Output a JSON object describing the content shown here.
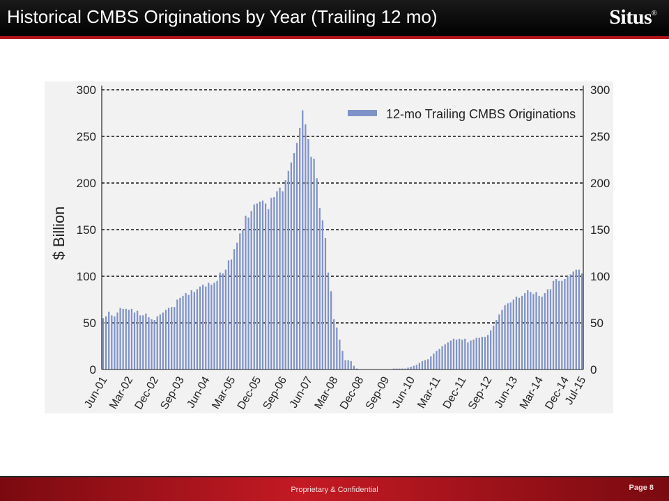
{
  "header": {
    "title": "Historical CMBS Originations by Year (Trailing 12 mo)",
    "logo_text": "Situs",
    "logo_mark": "®"
  },
  "footer": {
    "confidential": "Proprietary & Confidential",
    "page": "Page 8"
  },
  "colors": {
    "bar": "#7f92c9",
    "plot_background": "#f2f2f2",
    "header_rule": "#b3141c"
  },
  "chart_data": {
    "type": "bar",
    "title": "",
    "ylabel": "$ Billion",
    "ylabel_display": "$ Billion",
    "ylim": [
      0,
      300
    ],
    "yticks": [
      0,
      50,
      100,
      150,
      200,
      250,
      300
    ],
    "grid": "dashed horizontal at 50-unit intervals",
    "legend": {
      "position": "top-right",
      "entries": [
        "12-mo Trailing CMBS Originations"
      ]
    },
    "x_tick_labels": [
      "Jun-01",
      "Mar-02",
      "Dec-02",
      "Sep-03",
      "Jun-04",
      "Mar-05",
      "Dec-05",
      "Sep-06",
      "Jun-07",
      "Mar-08",
      "Dec-08",
      "Sep-09",
      "Jun-10",
      "Mar-11",
      "Dec-11",
      "Sep-12",
      "Jun-13",
      "Mar-14",
      "Dec-14",
      "Jul-15"
    ],
    "series": [
      {
        "name": "12-mo Trailing CMBS Originations",
        "start": "Jun-01",
        "end": "Jul-15",
        "frequency": "monthly",
        "values": [
          55,
          57,
          62,
          58,
          57,
          61,
          66,
          65,
          65,
          64,
          65,
          61,
          63,
          58,
          58,
          60,
          56,
          54,
          53,
          57,
          59,
          61,
          64,
          66,
          67,
          67,
          75,
          77,
          79,
          82,
          80,
          85,
          83,
          86,
          89,
          91,
          89,
          93,
          91,
          93,
          95,
          104,
          103,
          107,
          117,
          118,
          129,
          136,
          146,
          150,
          165,
          163,
          170,
          177,
          178,
          180,
          181,
          178,
          172,
          184,
          185,
          191,
          195,
          191,
          203,
          213,
          222,
          232,
          243,
          259,
          278,
          263,
          247,
          228,
          226,
          205,
          173,
          160,
          141,
          104,
          84,
          54,
          45,
          32,
          20,
          10,
          10,
          9,
          4,
          1,
          0,
          0,
          0,
          0,
          0,
          0,
          0,
          0,
          0,
          0,
          0,
          0,
          1,
          1,
          1,
          1,
          1,
          2,
          3,
          4,
          5,
          7,
          9,
          10,
          11,
          14,
          17,
          20,
          22,
          25,
          27,
          29,
          31,
          33,
          32,
          33,
          32,
          33,
          29,
          31,
          32,
          34,
          34,
          35,
          35,
          37,
          42,
          47,
          53,
          59,
          64,
          69,
          71,
          72,
          75,
          78,
          77,
          79,
          82,
          85,
          83,
          81,
          83,
          79,
          78,
          82,
          86,
          86,
          95,
          97,
          95,
          95,
          97,
          100,
          102,
          105,
          107,
          107,
          103
        ]
      }
    ]
  }
}
